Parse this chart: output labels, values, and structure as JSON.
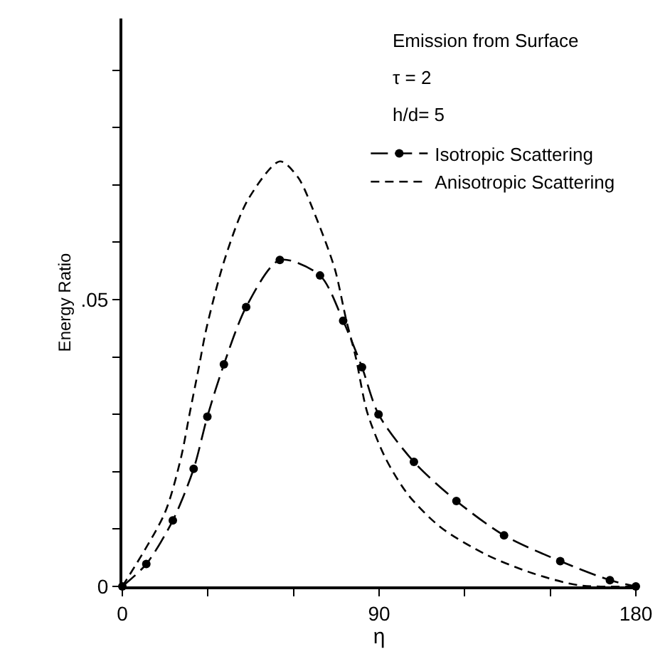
{
  "chart_data": {
    "type": "line",
    "xlabel": "η",
    "ylabel": "Energy Ratio",
    "annotations": [
      "Emission from Surface",
      "τ = 2",
      "h/d= 5"
    ],
    "xlim": [
      0,
      180
    ],
    "xticks": [
      0,
      {
        "value": 30,
        "label": null
      },
      {
        "value": 60,
        "label": null
      },
      90,
      {
        "value": 120,
        "label": null
      },
      {
        "value": 150,
        "label": null
      },
      180
    ],
    "ylim": [
      0,
      0.099
    ],
    "yticks": [
      0,
      {
        "value": 0.01,
        "label": null
      },
      {
        "value": 0.02,
        "label": null
      },
      {
        "value": 0.03,
        "label": null
      },
      {
        "value": 0.04,
        "label": null
      },
      {
        "value": 0.05,
        "label": ".05"
      },
      {
        "value": 0.06,
        "label": null
      },
      {
        "value": 0.07,
        "label": null
      },
      {
        "value": 0.08,
        "label": null
      },
      {
        "value": 0.09,
        "label": null
      }
    ],
    "legend": "top right",
    "series": [
      {
        "name": "Isotropic Scattering",
        "color": "#000000",
        "marker": "circle",
        "line_style": "dashed",
        "x": [
          0,
          8.4,
          17.7,
          25.0,
          29.8,
          35.6,
          43.4,
          55.2,
          69.3,
          77.4,
          84.0,
          89.8,
          102.2,
          117.1,
          133.8,
          153.5,
          170.9,
          180
        ],
        "values": [
          0,
          0.0039,
          0.0115,
          0.0205,
          0.0296,
          0.0387,
          0.0487,
          0.0569,
          0.0542,
          0.0463,
          0.0382,
          0.03,
          0.0217,
          0.0149,
          0.0089,
          0.0044,
          0.0011,
          0
        ]
      },
      {
        "name": "Anisotropic Scattering",
        "color": "#000000",
        "marker": "none",
        "line_style": "dashed",
        "x": [
          0,
          14.8,
          20.5,
          23.7,
          26.9,
          29.4,
          35.8,
          43.9,
          55.2,
          61.6,
          68.1,
          74.5,
          78.5,
          81.8,
          85.8,
          92.3,
          100.3,
          111.6,
          127.7,
          143.8,
          160,
          180
        ],
        "values": [
          0,
          0.0127,
          0.0223,
          0.0304,
          0.0384,
          0.0448,
          0.0569,
          0.0673,
          0.0741,
          0.0713,
          0.0641,
          0.0553,
          0.0464,
          0.04,
          0.0304,
          0.0223,
          0.0159,
          0.0103,
          0.0055,
          0.0023,
          0.0002,
          0
        ]
      }
    ]
  }
}
